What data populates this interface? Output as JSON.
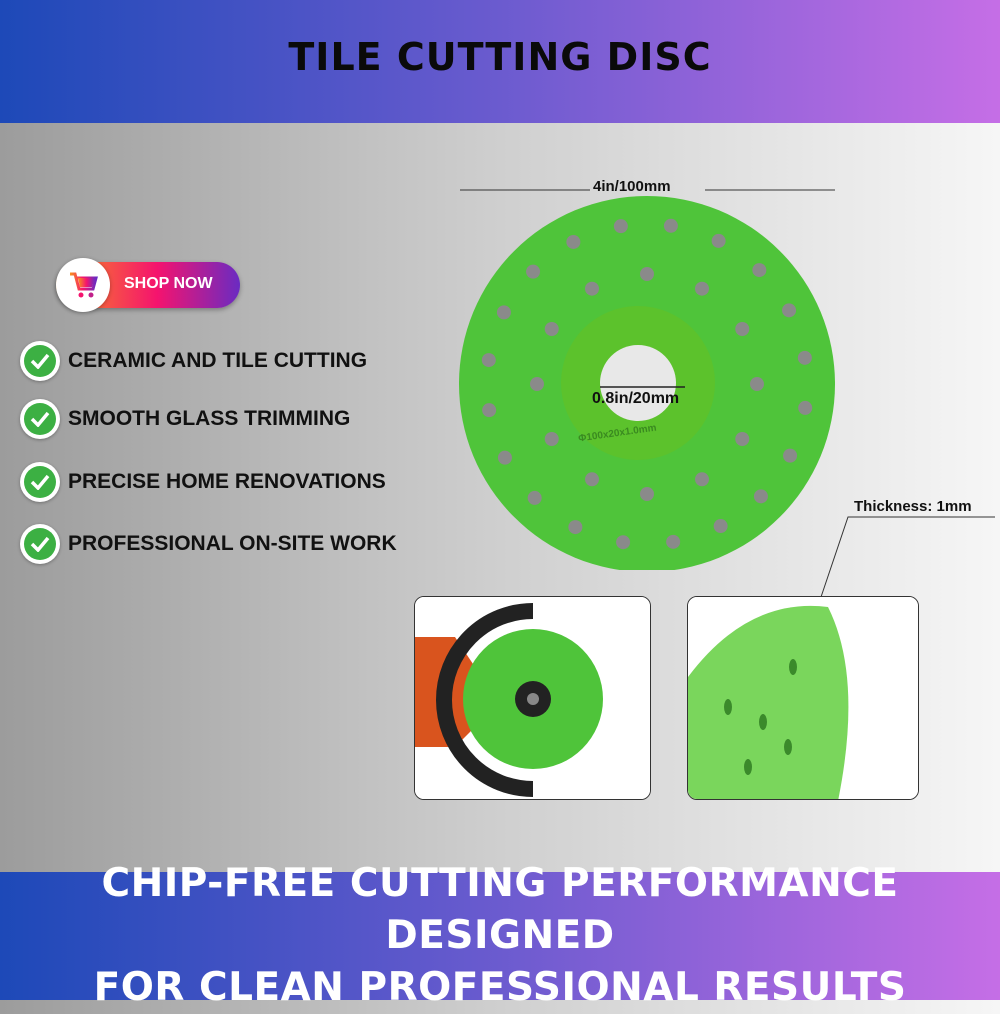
{
  "header": {
    "title": "TILE CUTTING DISC"
  },
  "shop_button": {
    "label": "SHOP NOW",
    "icon": "cart-icon"
  },
  "features": [
    {
      "label": "CERAMIC AND TILE CUTTING",
      "icon": "check-circle-icon"
    },
    {
      "label": "SMOOTH GLASS TRIMMING",
      "icon": "check-circle-icon"
    },
    {
      "label": "PRECISE HOME RENOVATIONS",
      "icon": "check-circle-icon"
    },
    {
      "label": "PROFESSIONAL ON-SITE WORK",
      "icon": "check-circle-icon"
    }
  ],
  "dimensions": {
    "diameter": "4in/100mm",
    "bore": "0.8in/20mm",
    "thickness": "Thickness: 1mm",
    "disc_marking": "Φ100x20x1.0mm"
  },
  "footer": {
    "line1": "CHIP-FREE CUTTING PERFORMANCE DESIGNED",
    "line2": "FOR CLEAN PROFESSIONAL RESULTS"
  },
  "colors": {
    "disc_green": "#4fc43a",
    "check_green": "#3cb043",
    "banner_start": "#1d49b8",
    "banner_end": "#c56ee6"
  }
}
